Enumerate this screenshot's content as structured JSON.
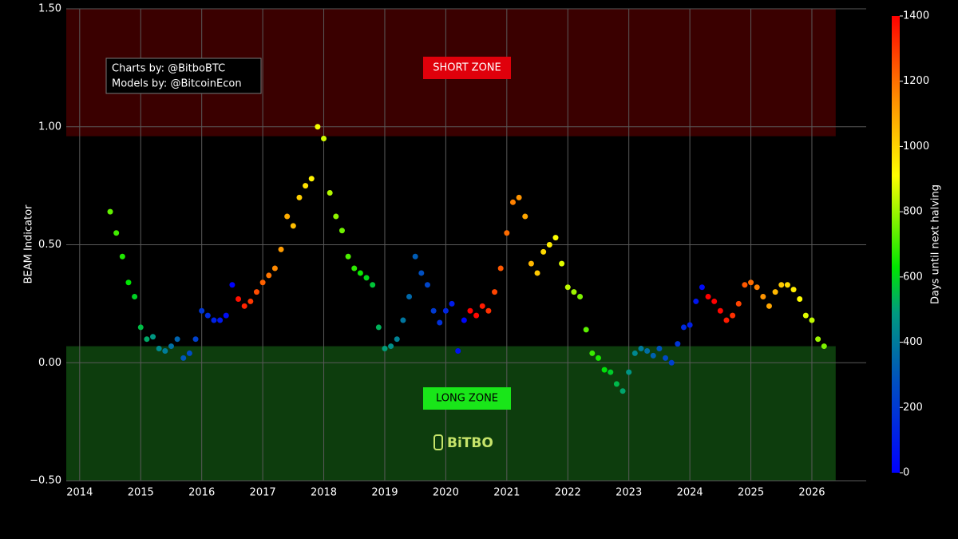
{
  "chart_data": {
    "type": "scatter",
    "y_label": "BEAM Indicator",
    "colorbar_label": "Days until next halving",
    "annotations": [
      "Charts by: @BitboBTC",
      "Models by: @BitcoinEcon"
    ],
    "watermark": "BiTBO",
    "zones": [
      {
        "label": "SHORT ZONE",
        "range": [
          0.96,
          1.5
        ],
        "xrange": [
          2013.78,
          2026.39
        ],
        "color": "#3a0000",
        "label_color": "#e0000b"
      },
      {
        "label": "LONG ZONE",
        "range": [
          -0.5,
          0.07
        ],
        "xrange": [
          2013.78,
          2026.39
        ],
        "color": "#0d3d0d",
        "label_color": "#19e619"
      }
    ],
    "xlim": [
      2013.78,
      2026.89
    ],
    "xticks": [
      2014,
      2015,
      2016,
      2017,
      2018,
      2019,
      2020,
      2021,
      2022,
      2023,
      2024,
      2025,
      2026
    ],
    "ylim": [
      -0.5,
      1.5
    ],
    "yticks": [
      {
        "value": -0.5,
        "label": "−0.50"
      },
      {
        "value": 0,
        "label": "0.00"
      },
      {
        "value": 0.5,
        "label": "0.50"
      },
      {
        "value": 1,
        "label": "1.00"
      },
      {
        "value": 1.5,
        "label": "1.50"
      }
    ],
    "grid": true,
    "color_lim": [
      0,
      1400
    ],
    "color_ticks": [
      0,
      200,
      400,
      600,
      800,
      1000,
      1200,
      1400
    ],
    "colorscale": [
      [
        0,
        "#0000ff"
      ],
      [
        0.2,
        "#0050c0"
      ],
      [
        0.35,
        "#009a80"
      ],
      [
        0.45,
        "#00e600"
      ],
      [
        0.65,
        "#ffff00"
      ],
      [
        0.82,
        "#ff8c00"
      ],
      [
        1,
        "#ff0000"
      ]
    ],
    "x": [
      2014.5,
      2014.6,
      2014.7,
      2014.8,
      2014.9,
      2015.0,
      2015.1,
      2015.2,
      2015.3,
      2015.4,
      2015.5,
      2015.6,
      2015.7,
      2015.8,
      2015.9,
      2016.0,
      2016.1,
      2016.2,
      2016.3,
      2016.4,
      2016.5,
      2016.6,
      2016.7,
      2016.8,
      2016.9,
      2017.0,
      2017.1,
      2017.2,
      2017.3,
      2017.4,
      2017.5,
      2017.6,
      2017.7,
      2017.8,
      2017.9,
      2018.0,
      2018.1,
      2018.2,
      2018.3,
      2018.4,
      2018.5,
      2018.6,
      2018.7,
      2018.8,
      2018.9,
      2019.0,
      2019.1,
      2019.2,
      2019.3,
      2019.4,
      2019.5,
      2019.6,
      2019.7,
      2019.8,
      2019.9,
      2020.0,
      2020.1,
      2020.2,
      2020.3,
      2020.4,
      2020.5,
      2020.6,
      2020.7,
      2020.8,
      2020.9,
      2021.0,
      2021.1,
      2021.2,
      2021.3,
      2021.4,
      2021.5,
      2021.6,
      2021.7,
      2021.8,
      2021.9,
      2022.0,
      2022.1,
      2022.2,
      2022.3,
      2022.4,
      2022.5,
      2022.6,
      2022.7,
      2022.8,
      2022.9,
      2023.0,
      2023.1,
      2023.2,
      2023.3,
      2023.4,
      2023.5,
      2023.6,
      2023.7,
      2023.8,
      2023.9,
      2024.0,
      2024.1,
      2024.2,
      2024.3,
      2024.4,
      2024.5,
      2024.6,
      2024.7,
      2024.8,
      2024.9,
      2025.0,
      2025.1,
      2025.2,
      2025.3,
      2025.4,
      2025.5,
      2025.6,
      2025.7,
      2025.8,
      2025.9,
      2026.0,
      2026.1,
      2026.2
    ],
    "values": [
      0.64,
      0.55,
      0.45,
      0.34,
      0.28,
      0.15,
      0.1,
      0.11,
      0.06,
      0.05,
      0.07,
      0.1,
      0.02,
      0.04,
      0.1,
      0.22,
      0.2,
      0.18,
      0.18,
      0.2,
      0.33,
      0.27,
      0.24,
      0.26,
      0.3,
      0.34,
      0.37,
      0.4,
      0.48,
      0.62,
      0.58,
      0.7,
      0.75,
      0.78,
      1.0,
      0.95,
      0.72,
      0.62,
      0.56,
      0.45,
      0.4,
      0.38,
      0.36,
      0.33,
      0.15,
      0.06,
      0.07,
      0.1,
      0.18,
      0.28,
      0.45,
      0.38,
      0.33,
      0.22,
      0.17,
      0.22,
      0.25,
      0.05,
      0.18,
      0.22,
      0.2,
      0.24,
      0.22,
      0.3,
      0.4,
      0.55,
      0.68,
      0.7,
      0.62,
      0.42,
      0.38,
      0.47,
      0.5,
      0.53,
      0.42,
      0.32,
      0.3,
      0.28,
      0.14,
      0.04,
      0.02,
      -0.03,
      -0.04,
      -0.09,
      -0.12,
      -0.04,
      0.04,
      0.06,
      0.05,
      0.03,
      0.06,
      0.02,
      0.0,
      0.08,
      0.15,
      0.16,
      0.26,
      0.32,
      0.28,
      0.26,
      0.22,
      0.18,
      0.2,
      0.25,
      0.33,
      0.34,
      0.32,
      0.28,
      0.24,
      0.3,
      0.33,
      0.33,
      0.31,
      0.27,
      0.2,
      0.18,
      0.1,
      0.07
    ],
    "color_values": [
      737,
      701,
      664,
      628,
      591,
      555,
      518,
      482,
      445,
      409,
      372,
      336,
      299,
      263,
      226,
      190,
      153,
      117,
      80,
      44,
      7,
      1372,
      1336,
      1299,
      1263,
      1226,
      1190,
      1153,
      1117,
      1080,
      1044,
      1007,
      971,
      934,
      898,
      861,
      825,
      788,
      752,
      715,
      679,
      642,
      606,
      569,
      533,
      496,
      460,
      423,
      387,
      350,
      314,
      277,
      241,
      204,
      168,
      131,
      95,
      58,
      22,
      1424,
      1387,
      1351,
      1314,
      1278,
      1241,
      1205,
      1168,
      1132,
      1095,
      1059,
      1022,
      986,
      949,
      913,
      876,
      840,
      803,
      767,
      730,
      694,
      657,
      621,
      584,
      548,
      511,
      475,
      438,
      402,
      365,
      329,
      292,
      256,
      219,
      183,
      146,
      110,
      73,
      37,
      1460,
      1424,
      1387,
      1351,
      1314,
      1278,
      1241,
      1205,
      1168,
      1132,
      1095,
      1059,
      1022,
      986,
      949,
      913,
      876,
      840,
      803,
      767
    ]
  }
}
